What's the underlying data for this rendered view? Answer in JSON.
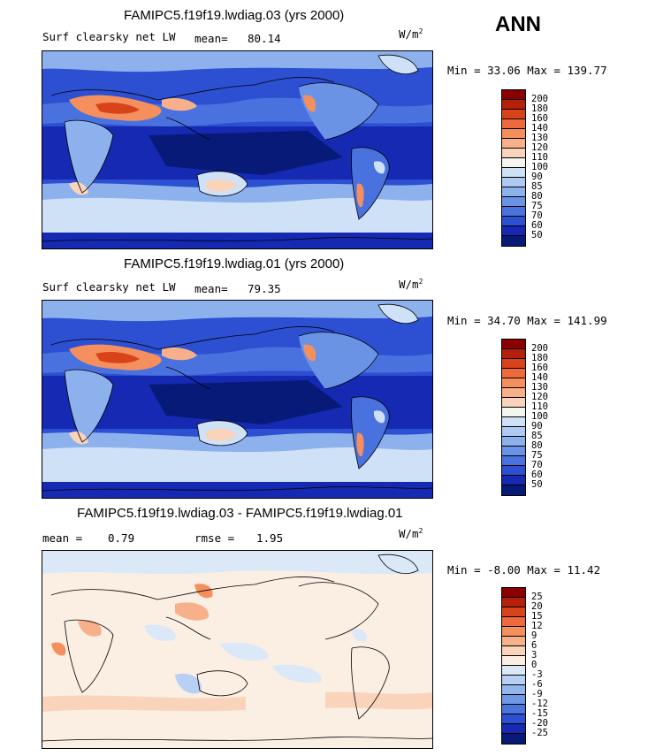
{
  "season": "ANN",
  "panels": [
    {
      "title": "FAMIPC5.f19f19.lwdiag.03 (yrs 2000)",
      "variable": "Surf clearsky net LW",
      "stat1_label": "mean=",
      "stat1_value": "80.14",
      "stat2_label": "",
      "stat2_value": "",
      "units_base": "W/m",
      "units_exp": "2",
      "range_text": "Min =  33.06 Max = 139.77",
      "levels": [
        "200",
        "180",
        "160",
        "140",
        "130",
        "120",
        "110",
        "100",
        "90",
        "85",
        "80",
        "75",
        "70",
        "60",
        "50"
      ],
      "colors": [
        "#8b0000",
        "#b5200b",
        "#d9431a",
        "#ee6a3c",
        "#f5905e",
        "#f8b08a",
        "#fad3bb",
        "#f4f4f0",
        "#cfe1f7",
        "#afcaf2",
        "#8cb1ec",
        "#6a93e6",
        "#4a72de",
        "#2d4fd2",
        "#1529b2",
        "#081a78"
      ]
    },
    {
      "title": "FAMIPC5.f19f19.lwdiag.01 (yrs 2000)",
      "variable": "Surf clearsky net LW",
      "stat1_label": "mean=",
      "stat1_value": "79.35",
      "stat2_label": "",
      "stat2_value": "",
      "units_base": "W/m",
      "units_exp": "2",
      "range_text": "Min =  34.70 Max = 141.99",
      "levels": [
        "200",
        "180",
        "160",
        "140",
        "130",
        "120",
        "110",
        "100",
        "90",
        "85",
        "80",
        "75",
        "70",
        "60",
        "50"
      ],
      "colors": [
        "#8b0000",
        "#b5200b",
        "#d9431a",
        "#ee6a3c",
        "#f5905e",
        "#f8b08a",
        "#fad3bb",
        "#f4f4f0",
        "#cfe1f7",
        "#afcaf2",
        "#8cb1ec",
        "#6a93e6",
        "#4a72de",
        "#2d4fd2",
        "#1529b2",
        "#081a78"
      ]
    },
    {
      "title": "FAMIPC5.f19f19.lwdiag.03 - FAMIPC5.f19f19.lwdiag.01",
      "variable": "",
      "stat1_label": "mean =",
      "stat1_value": "0.79",
      "stat2_label": "rmse =",
      "stat2_value": "1.95",
      "units_base": "W/m",
      "units_exp": "2",
      "range_text": "Min =  -8.00 Max =  11.42",
      "levels": [
        "25",
        "20",
        "15",
        "12",
        "9",
        "6",
        "3",
        "0",
        "-3",
        "-6",
        "-9",
        "-12",
        "-15",
        "-20",
        "-25"
      ],
      "colors": [
        "#8b0000",
        "#b5200b",
        "#d9431a",
        "#ee6a3c",
        "#f5905e",
        "#f8b08a",
        "#fad3bb",
        "#fbeee3",
        "#dbe8f8",
        "#b8d0f4",
        "#93b6ee",
        "#6f97e7",
        "#4c74de",
        "#2d4fd2",
        "#1529b2",
        "#081a78"
      ]
    }
  ]
}
